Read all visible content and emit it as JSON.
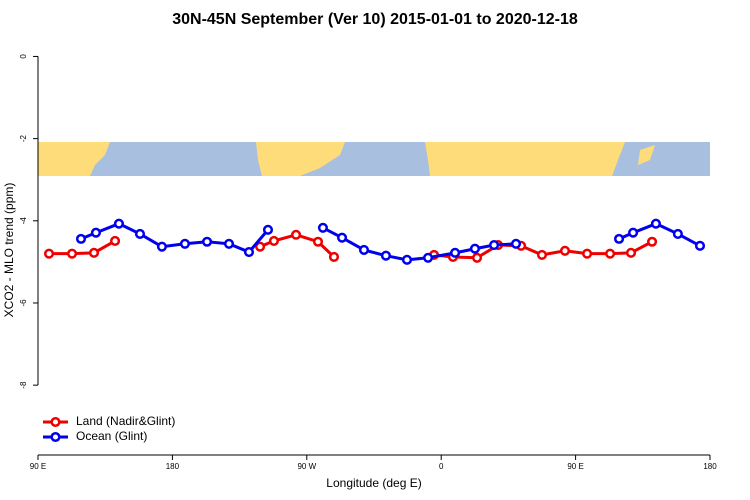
{
  "chart_data": {
    "type": "line",
    "title": "30N-45N September (Ver 10)   2015-01-01 to 2020-12-18",
    "x_label": "Longitude (deg E)",
    "y_label": "XCO2 - MLO trend (ppm)",
    "xlim": [
      90,
      540
    ],
    "xticks": [
      {
        "value": 90,
        "label": "90 E"
      },
      180,
      {
        "value": 270,
        "label": "90 W"
      },
      {
        "value": 360,
        "label": "0"
      },
      {
        "value": 450,
        "label": "90 E"
      },
      {
        "value": 540,
        "label": "180"
      }
    ],
    "ylim": [
      -9.7,
      0.4
    ],
    "yticks": [
      0,
      -2,
      -4,
      -6,
      -8
    ],
    "legend": "bottomleft",
    "series": [
      {
        "name": "Land (Nadir&Glint)",
        "color": "#ee0000",
        "x": [
          97.4,
          112.8,
          127.5,
          141.6,
          null,
          238.7,
          248,
          262.8,
          277.5,
          288.2,
          null,
          355.2,
          367.9,
          384,
          398.1,
          413.5,
          427.5,
          442.9,
          457.7,
          473.1,
          487.1,
          501.2
        ],
        "values": [
          -4.8,
          -4.8,
          -4.78,
          -4.49,
          null,
          -4.63,
          -4.49,
          -4.34,
          -4.51,
          -4.88,
          null,
          -4.83,
          -4.88,
          -4.9,
          -4.59,
          -4.61,
          -4.83,
          -4.73,
          -4.8,
          -4.8,
          -4.78,
          -4.51
        ]
      },
      {
        "name": "Ocean (Glint)",
        "color": "#0000ee",
        "x": [
          118.8,
          128.8,
          144.2,
          158.3,
          173,
          188.4,
          203.2,
          217.9,
          231.3,
          244,
          null,
          280.8,
          293.6,
          308.3,
          323,
          337.1,
          351.2,
          369.3,
          382.6,
          395.4,
          410.1,
          null,
          479.1,
          488.5,
          503.8,
          518.5,
          533.3
        ],
        "values": [
          -4.44,
          -4.29,
          -4.07,
          -4.32,
          -4.63,
          -4.56,
          -4.51,
          -4.56,
          -4.76,
          -4.22,
          null,
          -4.17,
          -4.41,
          -4.71,
          -4.85,
          -4.95,
          -4.9,
          -4.78,
          -4.68,
          -4.59,
          -4.56,
          null,
          -4.44,
          -4.29,
          -4.07,
          -4.32,
          -4.61
        ]
      }
    ]
  }
}
